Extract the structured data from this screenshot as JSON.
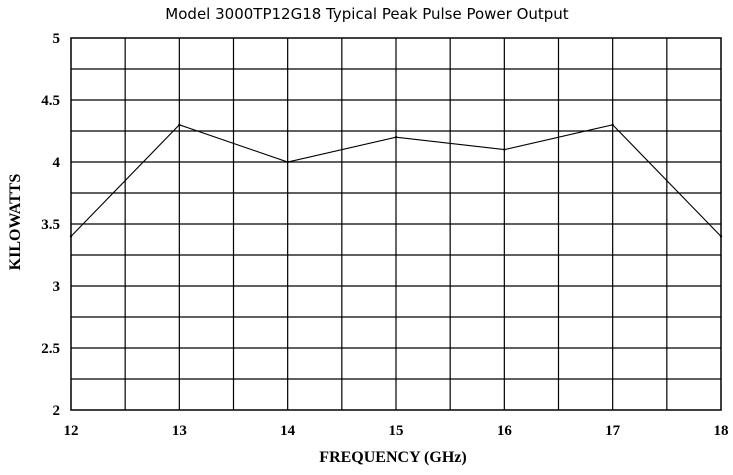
{
  "chart_data": {
    "type": "line",
    "title": "Model 3000TP12G18 Typical Peak Pulse Power Output",
    "xlabel": "FREQUENCY (GHz)",
    "ylabel": "KILOWATTS",
    "xlim": [
      12,
      18
    ],
    "ylim": [
      2,
      5
    ],
    "x_ticks": [
      12,
      13,
      14,
      15,
      16,
      17,
      18
    ],
    "y_ticks": [
      2,
      2.5,
      3,
      3.5,
      4,
      4.5,
      5
    ],
    "x_tick_labels": [
      "12",
      "13",
      "14",
      "15",
      "16",
      "17",
      "18"
    ],
    "y_tick_labels": [
      "2",
      "2.5",
      "3",
      "3.5",
      "4",
      "4.5",
      "5"
    ],
    "x_minor_step": 0.5,
    "y_minor_step": 0.25,
    "grid": true,
    "legend": "none",
    "line_color": "#000000",
    "series": [
      {
        "x": [
          12,
          13,
          14,
          15,
          16,
          17,
          18
        ],
        "values": [
          3.4,
          4.3,
          4.0,
          4.2,
          4.1,
          4.3,
          3.4
        ]
      }
    ]
  }
}
